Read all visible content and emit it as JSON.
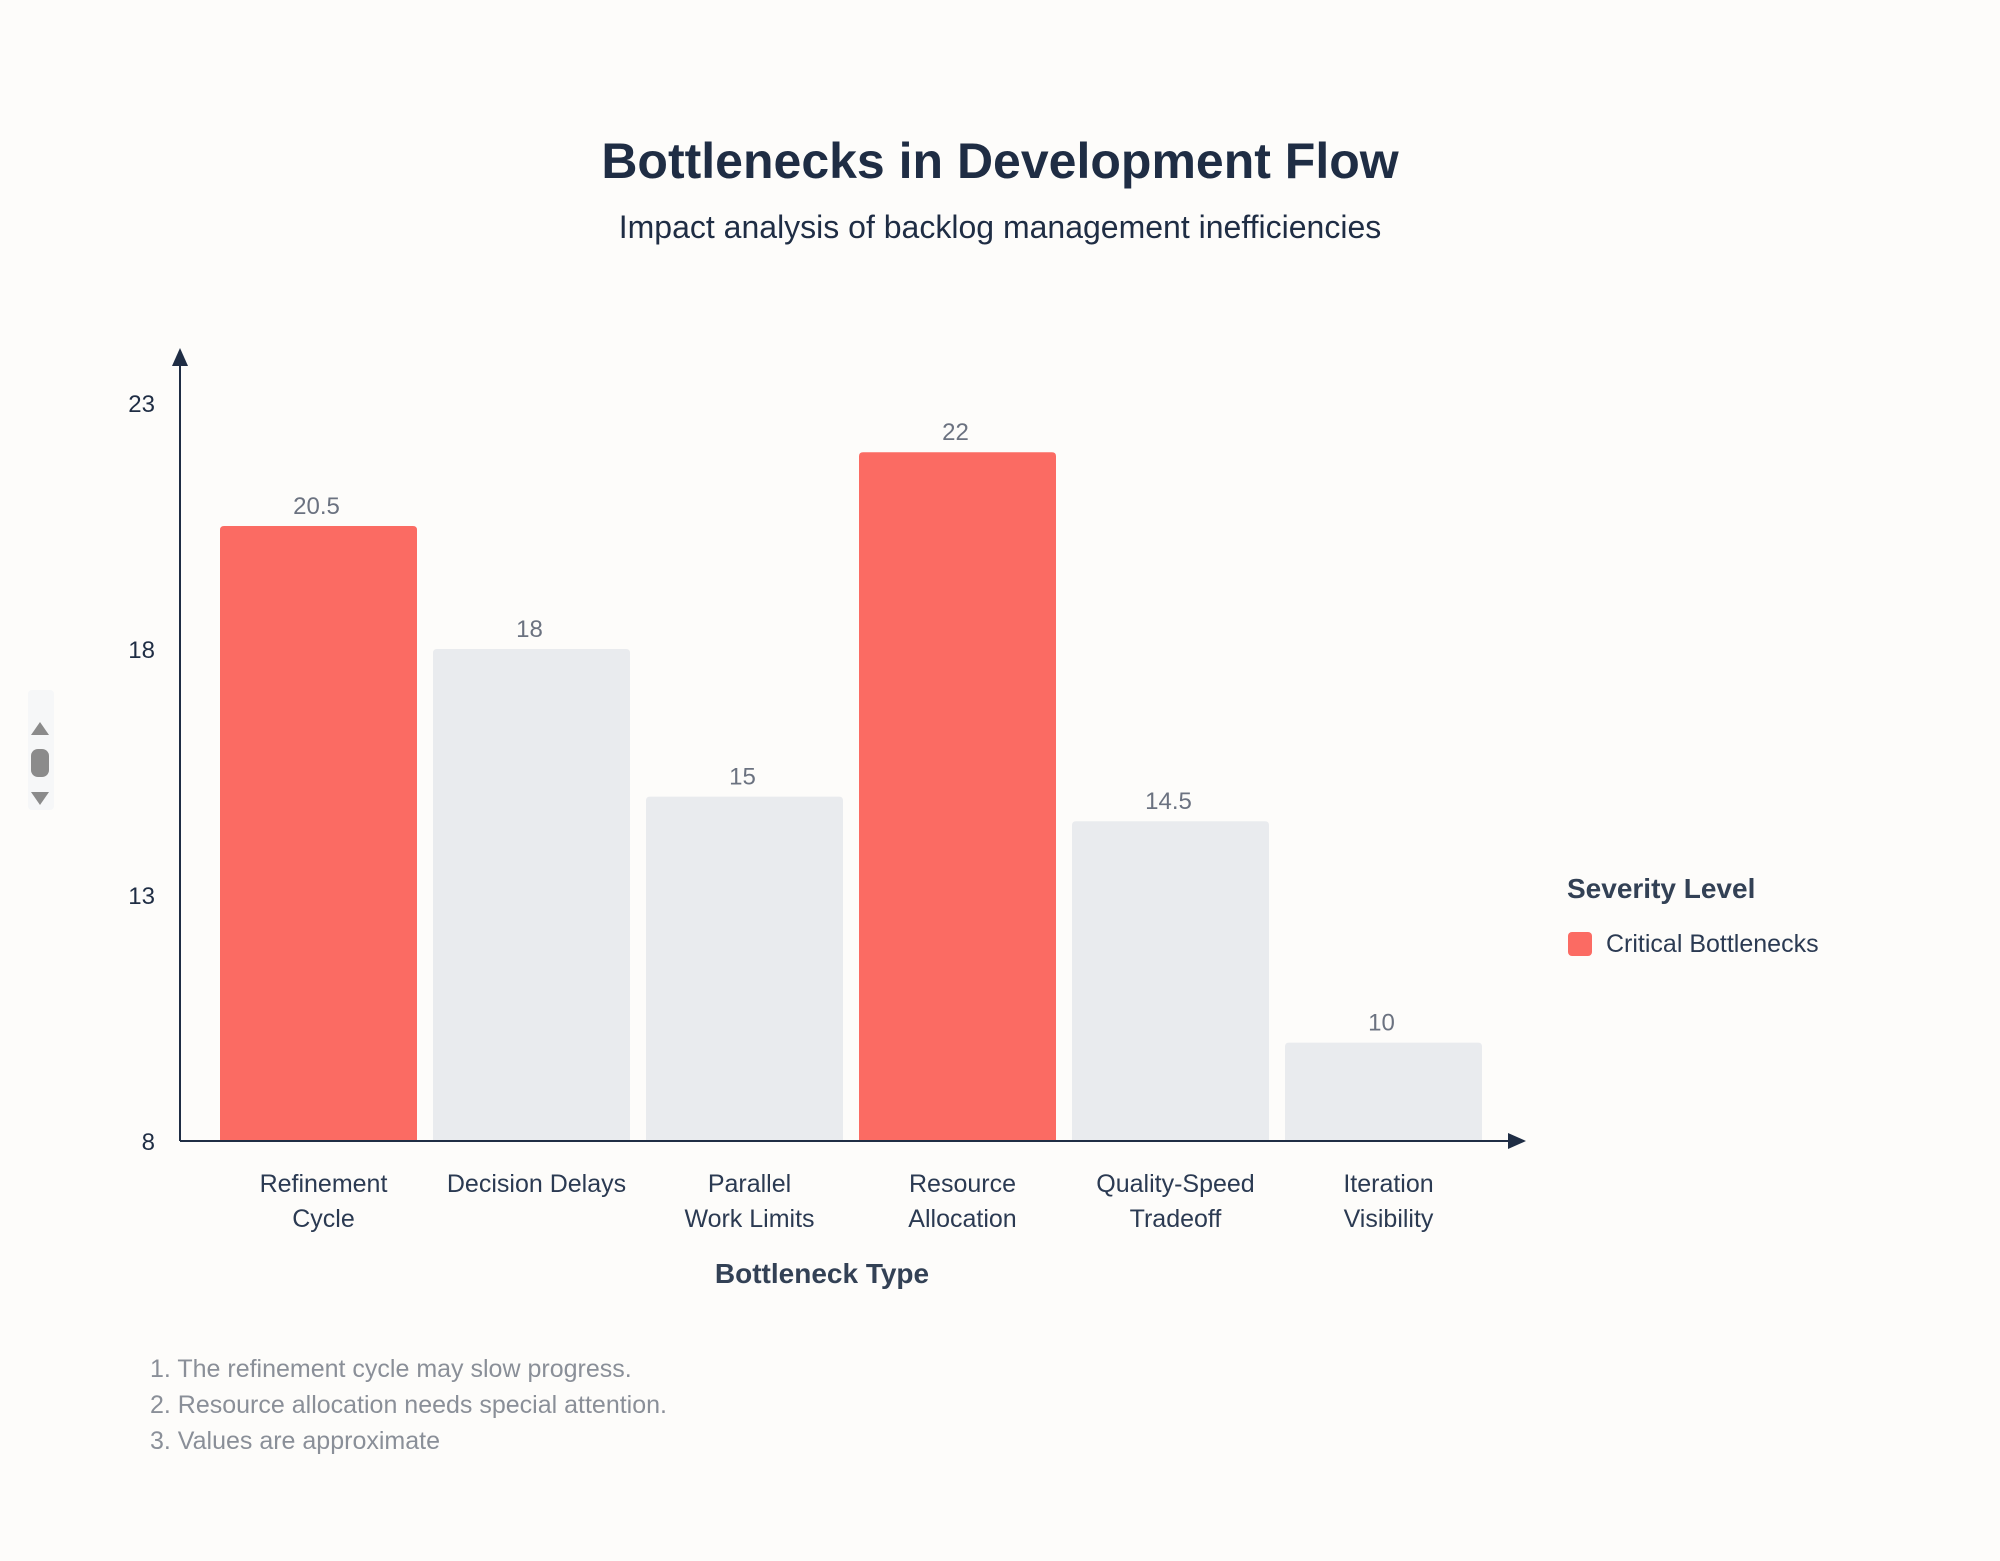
{
  "chart_data": {
    "type": "bar",
    "title": "Bottlenecks in Development Flow",
    "subtitle": "Impact analysis of backlog management inefficiencies",
    "xlabel": "Bottleneck Type",
    "ylabel": "",
    "ylim": [
      8,
      23
    ],
    "yticks": [
      "8",
      "13",
      "18",
      "23"
    ],
    "categories": [
      [
        "Refinement",
        "Cycle"
      ],
      [
        "Decision Delays"
      ],
      [
        "Parallel",
        "Work Limits"
      ],
      [
        "Resource",
        "Allocation"
      ],
      [
        "Quality-Speed",
        "Tradeoff"
      ],
      [
        "Iteration",
        "Visibility"
      ]
    ],
    "values": [
      20.5,
      18,
      15,
      22,
      14.5,
      10
    ],
    "value_labels": [
      "20.5",
      "18",
      "15",
      "22",
      "14.5",
      "10"
    ],
    "critical": [
      true,
      false,
      false,
      true,
      false,
      false
    ],
    "colors": {
      "critical": "#fb6b63",
      "normal": "#e9ebee",
      "axis": "#1f2d44"
    },
    "legend": {
      "title": "Severity Level",
      "items": [
        {
          "label": "Critical Bottlenecks",
          "color": "#fb6b63"
        }
      ]
    },
    "notes": [
      "1. The refinement cycle may slow progress.",
      "2. Resource allocation needs special attention.",
      "3. Values are approximate"
    ]
  }
}
